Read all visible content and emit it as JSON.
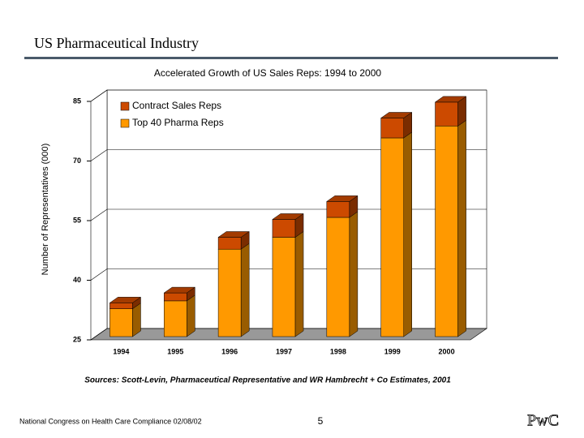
{
  "slide": {
    "title": "US Pharmaceutical Industry",
    "source": "Sources: Scott-Levin, Pharmaceutical Representative and WR Hambrecht + Co Estimates, 2001",
    "footer": "National Congress on Health Care Compliance 02/08/02",
    "page": "5",
    "logo": "PwC"
  },
  "chart_data": {
    "type": "bar3d_stacked",
    "title": "Accelerated Growth of US Sales Reps: 1994 to 2000",
    "ylabel": "Number of Representatives (000)",
    "categories": [
      "1994",
      "1995",
      "1996",
      "1997",
      "1998",
      "1999",
      "2000"
    ],
    "series": [
      {
        "name": "Top 40 Pharma Reps",
        "color": "#ff9900",
        "values": [
          7,
          9,
          22,
          25,
          30,
          50,
          53
        ]
      },
      {
        "name": "Contract Sales Reps",
        "color": "#cc4a00",
        "values": [
          1.5,
          2,
          3,
          4.5,
          4,
          5,
          6
        ]
      }
    ],
    "ylim": [
      25,
      85
    ],
    "yticks": [
      25,
      40,
      55,
      70,
      85
    ],
    "grid": true
  }
}
